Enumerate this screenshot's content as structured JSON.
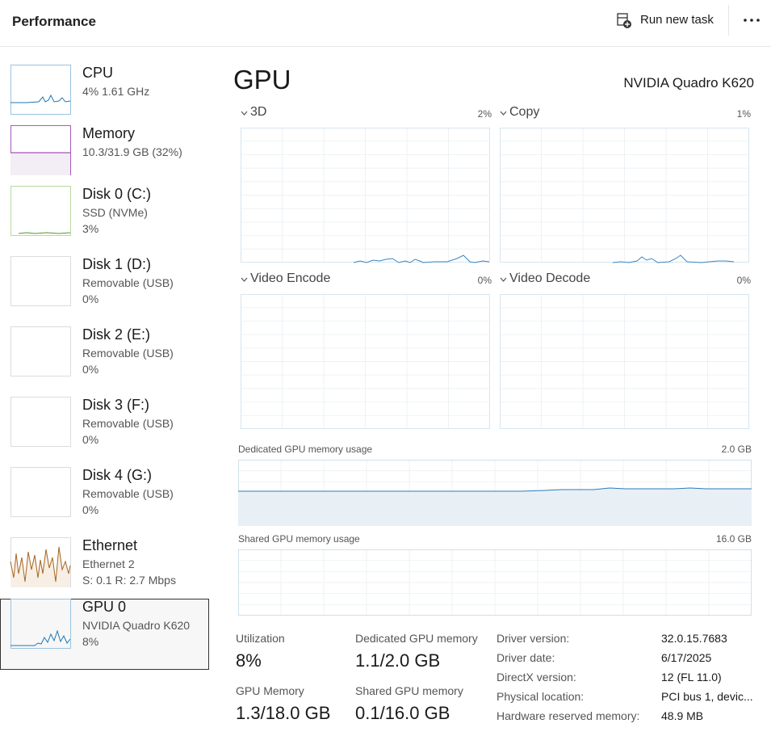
{
  "header": {
    "title": "Performance",
    "run_task": "Run new task"
  },
  "sidebar": [
    {
      "name": "CPU",
      "lines": [
        "4%  1.61 GHz"
      ]
    },
    {
      "name": "Memory",
      "lines": [
        "10.3/31.9 GB (32%)"
      ]
    },
    {
      "name": "Disk 0 (C:)",
      "lines": [
        "SSD (NVMe)",
        "3%"
      ]
    },
    {
      "name": "Disk 1 (D:)",
      "lines": [
        "Removable (USB)",
        "0%"
      ]
    },
    {
      "name": "Disk 2 (E:)",
      "lines": [
        "Removable (USB)",
        "0%"
      ]
    },
    {
      "name": "Disk 3 (F:)",
      "lines": [
        "Removable (USB)",
        "0%"
      ]
    },
    {
      "name": "Disk 4 (G:)",
      "lines": [
        "Removable (USB)",
        "0%"
      ]
    },
    {
      "name": "Ethernet",
      "lines": [
        "Ethernet 2",
        "S: 0.1  R: 2.7 Mbps"
      ]
    },
    {
      "name": "GPU 0",
      "lines": [
        "NVIDIA Quadro K620",
        "8%"
      ]
    }
  ],
  "main": {
    "title": "GPU",
    "device": "NVIDIA Quadro K620",
    "graphs": [
      {
        "label": "3D",
        "value": "2%"
      },
      {
        "label": "Copy",
        "value": "1%"
      },
      {
        "label": "Video Encode",
        "value": "0%"
      },
      {
        "label": "Video Decode",
        "value": "0%"
      }
    ],
    "memory_graphs": [
      {
        "label": "Dedicated GPU memory usage",
        "max": "2.0 GB"
      },
      {
        "label": "Shared GPU memory usage",
        "max": "16.0 GB"
      }
    ],
    "stats": [
      {
        "label": "Utilization",
        "value": "8%"
      },
      {
        "label": "Dedicated GPU memory",
        "value": "1.1/2.0 GB"
      },
      {
        "label": "GPU Memory",
        "value": "1.3/18.0 GB"
      },
      {
        "label": "Shared GPU memory",
        "value": "0.1/16.0 GB"
      }
    ],
    "details": [
      {
        "label": "Driver version:",
        "value": "32.0.15.7683"
      },
      {
        "label": "Driver date:",
        "value": "6/17/2025"
      },
      {
        "label": "DirectX version:",
        "value": "12 (FL 11.0)"
      },
      {
        "label": "Physical location:",
        "value": "PCI bus 1, devic..."
      },
      {
        "label": "Hardware reserved memory:",
        "value": "48.9 MB"
      }
    ]
  }
}
